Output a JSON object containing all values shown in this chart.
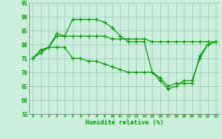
{
  "xlabel": "Humidité relative (%)",
  "xlim": [
    -0.5,
    23.5
  ],
  "ylim": [
    55,
    95
  ],
  "yticks": [
    55,
    60,
    65,
    70,
    75,
    80,
    85,
    90,
    95
  ],
  "xticks": [
    0,
    1,
    2,
    3,
    4,
    5,
    6,
    7,
    8,
    9,
    10,
    11,
    12,
    13,
    14,
    15,
    16,
    17,
    18,
    19,
    20,
    21,
    22,
    23
  ],
  "background_color": "#cceedd",
  "grid_color": "#99ccbb",
  "line_color": "#009900",
  "line1": [
    75,
    78,
    79,
    84,
    83,
    89,
    89,
    89,
    89,
    88,
    86,
    83,
    81,
    81,
    81,
    70,
    68,
    65,
    66,
    66,
    66,
    76,
    80,
    81
  ],
  "line2": [
    75,
    78,
    79,
    83,
    83,
    83,
    83,
    83,
    83,
    83,
    82,
    82,
    82,
    82,
    82,
    81,
    81,
    81,
    81,
    81,
    81,
    81,
    81,
    81
  ],
  "line3": [
    75,
    77,
    79,
    79,
    79,
    75,
    75,
    74,
    74,
    73,
    72,
    71,
    70,
    70,
    70,
    70,
    67,
    64,
    65,
    67,
    67,
    75,
    80,
    81
  ]
}
